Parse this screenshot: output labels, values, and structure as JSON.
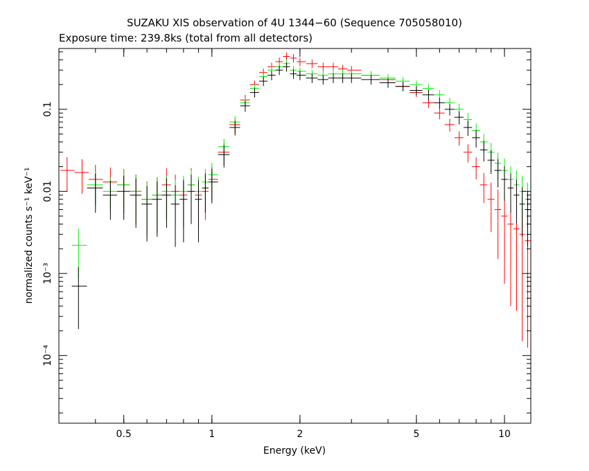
{
  "chart_data": {
    "type": "scatter",
    "title": "SUZAKU XIS observation of 4U 1344−60 (Sequence 705058010)",
    "subtitle": "Exposure time: 239.8ks (total from all detectors)",
    "xlabel": "Energy (keV)",
    "ylabel": "normalized counts s⁻¹ keV⁻¹",
    "x_scale": "log",
    "y_scale": "log",
    "xlim": [
      0.3,
      12.3
    ],
    "ylim": [
      1.5e-05,
      0.55
    ],
    "x_ticks": [
      {
        "value": 0.5,
        "label": "0.5"
      },
      {
        "value": 1,
        "label": "1"
      },
      {
        "value": 2,
        "label": "2"
      },
      {
        "value": 5,
        "label": "5"
      },
      {
        "value": 10,
        "label": "10"
      }
    ],
    "y_ticks": [
      {
        "value": 0.1,
        "label": "0.1"
      },
      {
        "value": 0.01,
        "label": "0.01"
      },
      {
        "value": 0.001,
        "label": "10⁻³"
      },
      {
        "value": 0.0001,
        "label": "10⁻⁴"
      }
    ],
    "grid": false,
    "legend": "none",
    "series": [
      {
        "color": "#ff0000",
        "x": [
          0.32,
          0.36,
          0.4,
          0.45,
          0.5,
          0.55,
          0.6,
          0.65,
          0.7,
          0.75,
          0.8,
          0.85,
          0.9,
          0.95,
          1.0,
          1.1,
          1.2,
          1.3,
          1.4,
          1.5,
          1.6,
          1.7,
          1.8,
          1.9,
          2.0,
          2.2,
          2.4,
          2.6,
          2.8,
          3.0,
          3.5,
          4.0,
          4.5,
          5.0,
          5.5,
          6.0,
          6.5,
          7.0,
          7.5,
          8.0,
          8.5,
          9.0,
          9.5,
          10.0,
          10.5,
          11.0,
          11.5,
          12.0
        ],
        "y": [
          0.018,
          0.017,
          0.014,
          0.013,
          0.012,
          0.01,
          0.008,
          0.009,
          0.012,
          0.01,
          0.009,
          0.012,
          0.009,
          0.01,
          0.014,
          0.03,
          0.065,
          0.13,
          0.2,
          0.28,
          0.33,
          0.38,
          0.44,
          0.42,
          0.38,
          0.36,
          0.33,
          0.33,
          0.31,
          0.3,
          0.26,
          0.23,
          0.19,
          0.16,
          0.12,
          0.09,
          0.065,
          0.045,
          0.03,
          0.02,
          0.012,
          0.008,
          0.006,
          0.005,
          0.004,
          0.0035,
          0.003,
          0.0025
        ],
        "err": [
          0.45,
          0.45,
          0.5,
          0.5,
          0.55,
          0.6,
          0.65,
          0.65,
          0.6,
          0.6,
          0.6,
          0.6,
          0.6,
          0.55,
          0.45,
          0.3,
          0.2,
          0.15,
          0.12,
          0.12,
          0.12,
          0.12,
          0.12,
          0.12,
          0.12,
          0.12,
          0.12,
          0.12,
          0.12,
          0.12,
          0.12,
          0.12,
          0.12,
          0.12,
          0.14,
          0.16,
          0.18,
          0.2,
          0.25,
          0.3,
          0.4,
          0.6,
          0.75,
          0.85,
          0.9,
          0.9,
          0.95,
          0.95
        ]
      },
      {
        "color": "#00ee00",
        "x": [
          0.35,
          0.4,
          0.45,
          0.5,
          0.55,
          0.6,
          0.65,
          0.7,
          0.75,
          0.8,
          0.85,
          0.9,
          0.95,
          1.0,
          1.1,
          1.2,
          1.3,
          1.4,
          1.5,
          1.6,
          1.7,
          1.8,
          1.9,
          2.0,
          2.2,
          2.4,
          2.6,
          2.8,
          3.0,
          3.5,
          4.0,
          4.5,
          5.0,
          5.5,
          6.0,
          6.5,
          7.0,
          7.5,
          8.0,
          8.5,
          9.0,
          9.5,
          10.0,
          10.5,
          11.0,
          11.5,
          12.0
        ],
        "y": [
          0.0022,
          0.012,
          0.01,
          0.012,
          0.01,
          0.008,
          0.009,
          0.01,
          0.009,
          0.01,
          0.012,
          0.01,
          0.013,
          0.016,
          0.035,
          0.07,
          0.12,
          0.18,
          0.25,
          0.3,
          0.33,
          0.36,
          0.3,
          0.29,
          0.27,
          0.26,
          0.27,
          0.27,
          0.27,
          0.26,
          0.24,
          0.22,
          0.2,
          0.18,
          0.15,
          0.12,
          0.1,
          0.075,
          0.055,
          0.04,
          0.03,
          0.022,
          0.018,
          0.014,
          0.012,
          0.01,
          0.008
        ],
        "err": [
          0.6,
          0.45,
          0.45,
          0.5,
          0.55,
          0.6,
          0.6,
          0.55,
          0.55,
          0.55,
          0.5,
          0.5,
          0.45,
          0.4,
          0.25,
          0.18,
          0.14,
          0.12,
          0.12,
          0.12,
          0.12,
          0.12,
          0.12,
          0.12,
          0.12,
          0.12,
          0.12,
          0.12,
          0.12,
          0.12,
          0.12,
          0.12,
          0.12,
          0.13,
          0.14,
          0.15,
          0.17,
          0.2,
          0.22,
          0.25,
          0.3,
          0.35,
          0.4,
          0.45,
          0.5,
          0.55,
          0.6
        ]
      },
      {
        "color": "#000000",
        "x": [
          0.35,
          0.4,
          0.45,
          0.5,
          0.55,
          0.6,
          0.65,
          0.7,
          0.75,
          0.8,
          0.85,
          0.9,
          0.95,
          1.0,
          1.1,
          1.2,
          1.3,
          1.4,
          1.5,
          1.6,
          1.7,
          1.8,
          1.9,
          2.0,
          2.2,
          2.4,
          2.6,
          2.8,
          3.0,
          3.5,
          4.0,
          4.5,
          5.0,
          5.5,
          6.0,
          6.5,
          7.0,
          7.5,
          8.0,
          8.5,
          9.0,
          9.5,
          10.0,
          10.5,
          11.0,
          11.5,
          12.0
        ],
        "y": [
          0.0007,
          0.011,
          0.009,
          0.01,
          0.009,
          0.007,
          0.008,
          0.009,
          0.007,
          0.008,
          0.01,
          0.008,
          0.011,
          0.013,
          0.028,
          0.06,
          0.11,
          0.16,
          0.22,
          0.26,
          0.3,
          0.33,
          0.27,
          0.26,
          0.24,
          0.23,
          0.24,
          0.24,
          0.24,
          0.23,
          0.21,
          0.19,
          0.17,
          0.15,
          0.12,
          0.1,
          0.08,
          0.06,
          0.045,
          0.032,
          0.024,
          0.018,
          0.014,
          0.011,
          0.009,
          0.007,
          0.006
        ],
        "err": [
          0.7,
          0.5,
          0.5,
          0.55,
          0.6,
          0.65,
          0.65,
          0.6,
          0.7,
          0.7,
          0.6,
          0.7,
          0.5,
          0.45,
          0.3,
          0.2,
          0.15,
          0.13,
          0.13,
          0.13,
          0.13,
          0.13,
          0.13,
          0.13,
          0.13,
          0.13,
          0.13,
          0.13,
          0.13,
          0.13,
          0.13,
          0.13,
          0.13,
          0.14,
          0.15,
          0.16,
          0.18,
          0.21,
          0.24,
          0.28,
          0.32,
          0.38,
          0.45,
          0.5,
          0.55,
          0.6,
          0.65
        ]
      }
    ]
  }
}
